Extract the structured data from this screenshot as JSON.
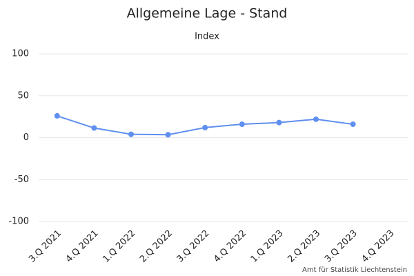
{
  "chart_data": {
    "type": "line",
    "title": "Allgemeine Lage - Stand",
    "subtitle": "Index",
    "credit": "Amt für Statistik Liechtenstein",
    "categories": [
      "3.Q 2021",
      "4.Q 2021",
      "1.Q 2022",
      "2.Q 2022",
      "3.Q 2022",
      "4.Q 2022",
      "1.Q 2023",
      "2.Q 2023",
      "3.Q 2023",
      "4.Q 2023"
    ],
    "values": [
      26,
      11.5,
      4,
      3.5,
      12,
      16,
      18,
      22,
      16,
      null
    ],
    "color": "#5f8ff0",
    "ylim": [
      -100,
      100
    ],
    "yticks": [
      -100,
      -50,
      0,
      50,
      100
    ],
    "grid": true
  }
}
